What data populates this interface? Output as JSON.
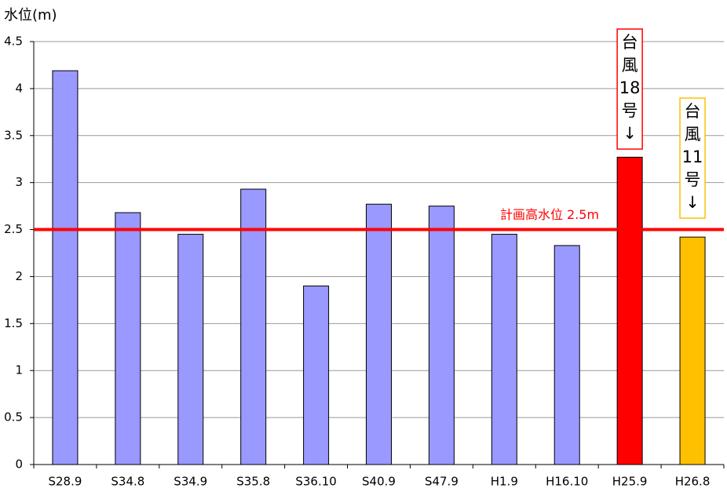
{
  "chart_data": {
    "type": "bar",
    "y_axis_label": "水位(m)",
    "categories": [
      "S28.9",
      "S34.8",
      "S34.9",
      "S35.8",
      "S36.10",
      "S40.9",
      "S47.9",
      "H1.9",
      "H16.10",
      "H25.9",
      "H26.8"
    ],
    "values": [
      4.19,
      2.68,
      2.45,
      2.93,
      1.9,
      2.77,
      2.75,
      2.45,
      2.33,
      3.27,
      2.42
    ],
    "colors": [
      "#9999ff",
      "#9999ff",
      "#9999ff",
      "#9999ff",
      "#9999ff",
      "#9999ff",
      "#9999ff",
      "#9999ff",
      "#9999ff",
      "#ff0000",
      "#ffc000"
    ],
    "ylim": [
      0,
      4.5
    ],
    "yticks": [
      0,
      0.5,
      1,
      1.5,
      2,
      2.5,
      3,
      3.5,
      4,
      4.5
    ],
    "grid": true,
    "reference_line": {
      "value": 2.5,
      "label": "計画高水位 2.5m",
      "color": "#ff0000"
    },
    "annotations": [
      {
        "category": "H25.9",
        "lines": [
          "台",
          "風",
          "18",
          "号",
          "↓"
        ],
        "color": "#ff0000"
      },
      {
        "category": "H26.8",
        "lines": [
          "台",
          "風",
          "11",
          "号",
          "↓"
        ],
        "color": "#ffc000"
      }
    ]
  }
}
